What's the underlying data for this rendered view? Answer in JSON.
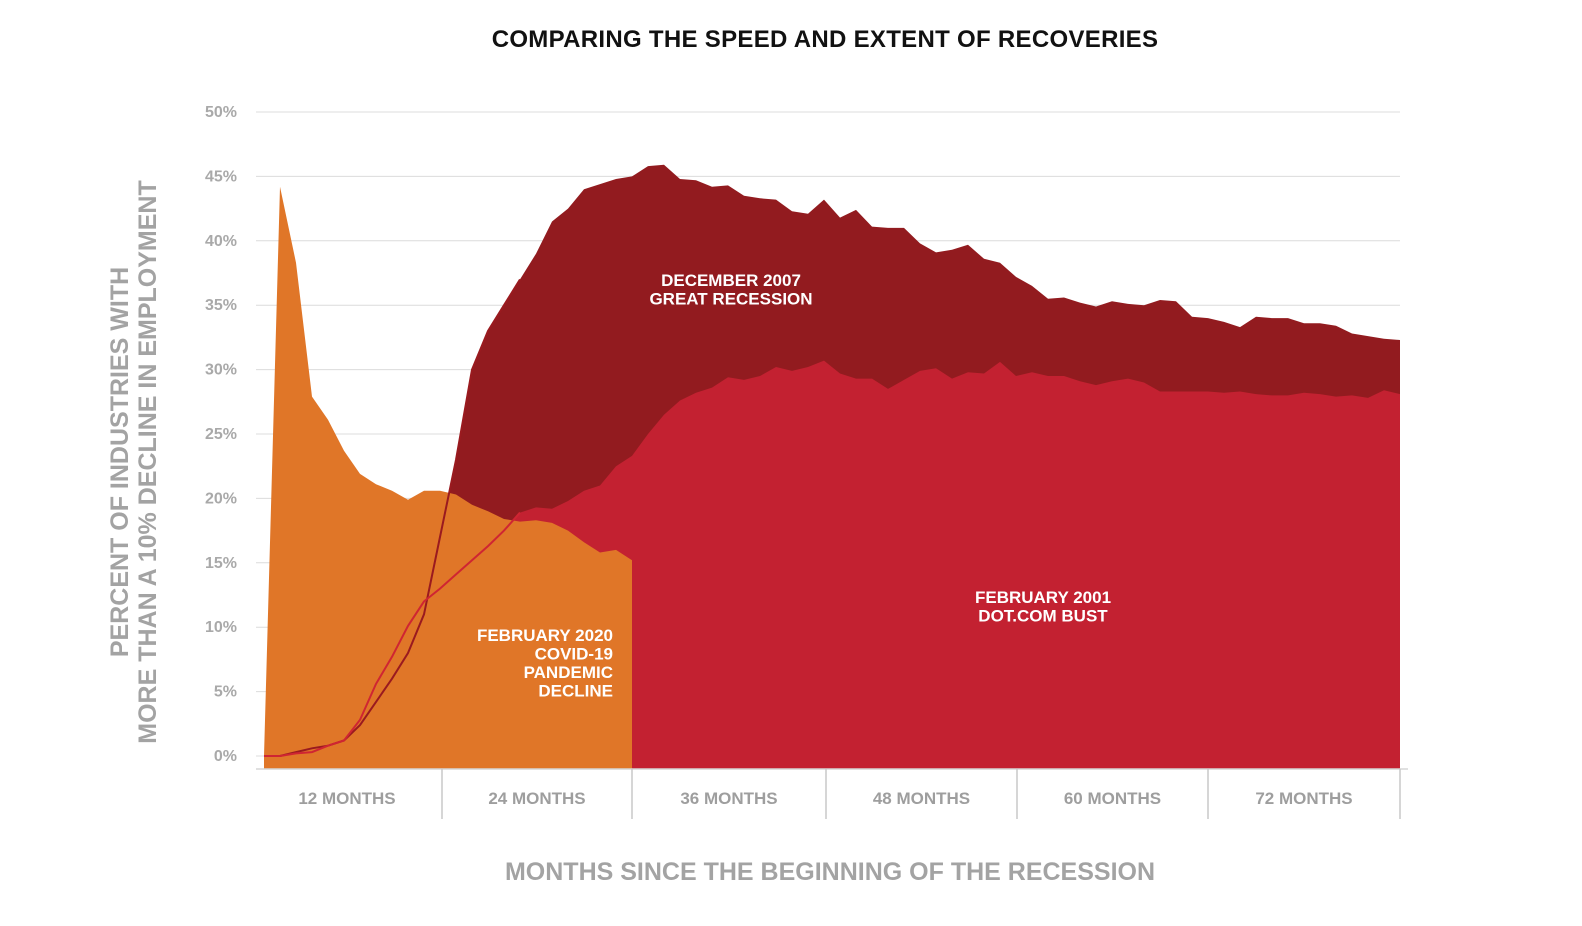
{
  "chart_data": {
    "type": "area",
    "title": "COMPARING THE SPEED AND EXTENT OF RECOVERIES",
    "xlabel": "MONTHS SINCE THE BEGINNING OF THE RECESSION",
    "ylabel_lines": [
      "PERCENT OF INDUSTRIES WITH",
      "MORE THAN A 10% DECLINE IN EMPLOYMENT"
    ],
    "x_ticks": [
      "12 MONTHS",
      "24 MONTHS",
      "36 MONTHS",
      "48 MONTHS",
      "60 MONTHS",
      "72 MONTHS"
    ],
    "y_ticks": [
      "0%",
      "5%",
      "10%",
      "15%",
      "20%",
      "25%",
      "30%",
      "35%",
      "40%",
      "45%",
      "50%"
    ],
    "ylim": [
      0,
      50
    ],
    "xlim": [
      1,
      72
    ],
    "grid": true,
    "series": [
      {
        "name": "DECEMBER 2007\nGREAT RECESSION",
        "label_lines": [
          "DECEMBER 2007",
          "GREAT RECESSION"
        ],
        "color": "#921b1f",
        "x": [
          1,
          2,
          3,
          4,
          5,
          6,
          7,
          8,
          9,
          10,
          11,
          12,
          13,
          14,
          15,
          16,
          17,
          18,
          19,
          20,
          21,
          22,
          23,
          24,
          25,
          26,
          27,
          28,
          29,
          30,
          31,
          32,
          33,
          34,
          35,
          36,
          37,
          38,
          39,
          40,
          41,
          42,
          43,
          44,
          45,
          46,
          47,
          48,
          49,
          50,
          51,
          52,
          53,
          54,
          55,
          56,
          57,
          58,
          59,
          60,
          61,
          62,
          63,
          64,
          65,
          66,
          67,
          68,
          69,
          70,
          71,
          72
        ],
        "values": [
          0,
          0,
          0.3,
          0.6,
          0.8,
          1.2,
          2.4,
          4.2,
          6,
          8,
          11,
          17,
          23,
          30,
          33,
          35,
          37,
          39,
          41.5,
          42.5,
          44,
          44.4,
          44.8,
          45,
          45.8,
          45.9,
          44.8,
          44.7,
          44.2,
          44.3,
          43.5,
          43.3,
          43.2,
          42.3,
          42.1,
          43.2,
          41.8,
          42.4,
          41.1,
          41,
          41,
          39.8,
          39.1,
          39.3,
          39.7,
          38.6,
          38.3,
          37.2,
          36.5,
          35.5,
          35.6,
          35.2,
          34.9,
          35.3,
          35.1,
          35,
          35.4,
          35.3,
          34.1,
          34,
          33.7,
          33.3,
          34.1,
          34,
          34,
          33.6,
          33.6,
          33.4,
          32.8,
          32.6,
          32.4,
          32.3
        ]
      },
      {
        "name": "FEBRUARY 2001\nDOT.COM BUST",
        "label_lines": [
          "FEBRUARY 2001",
          "DOT.COM BUST"
        ],
        "color": "#c32131",
        "x": [
          1,
          2,
          3,
          4,
          5,
          6,
          7,
          8,
          9,
          10,
          11,
          12,
          13,
          14,
          15,
          16,
          17,
          18,
          19,
          20,
          21,
          22,
          23,
          24,
          25,
          26,
          27,
          28,
          29,
          30,
          31,
          32,
          33,
          34,
          35,
          36,
          37,
          38,
          39,
          40,
          41,
          42,
          43,
          44,
          45,
          46,
          47,
          48,
          49,
          50,
          51,
          52,
          53,
          54,
          55,
          56,
          57,
          58,
          59,
          60,
          61,
          62,
          63,
          64,
          65,
          66,
          67,
          68,
          69,
          70,
          71,
          72
        ],
        "values": [
          0,
          0,
          0.2,
          0.3,
          0.8,
          1.2,
          2.8,
          5.6,
          7.7,
          10.1,
          12,
          13,
          14.1,
          15.2,
          16.3,
          17.5,
          18.9,
          19.3,
          19.2,
          19.8,
          20.6,
          21,
          22.5,
          23.3,
          25,
          26.5,
          27.6,
          28.2,
          28.6,
          29.4,
          29.2,
          29.5,
          30.2,
          29.9,
          30.2,
          30.7,
          29.7,
          29.3,
          29.3,
          28.5,
          29.2,
          29.9,
          30.1,
          29.3,
          29.8,
          29.7,
          30.6,
          29.5,
          29.8,
          29.5,
          29.5,
          29.1,
          28.8,
          29.1,
          29.3,
          29,
          28.3,
          28.3,
          28.3,
          28.3,
          28.2,
          28.3,
          28.1,
          28,
          28,
          28.2,
          28.1,
          27.9,
          28,
          27.8,
          28.4,
          28.1
        ]
      },
      {
        "name": "FEBRUARY 2020\nCOVID-19\nPANDEMIC\nDECLINE",
        "label_lines": [
          "FEBRUARY 2020",
          "COVID-19",
          "PANDEMIC",
          "DECLINE"
        ],
        "color": "#e07628",
        "x": [
          1,
          2,
          3,
          4,
          5,
          6,
          7,
          8,
          9,
          10,
          11,
          12,
          13,
          14,
          15,
          16,
          17,
          18,
          19,
          20,
          21,
          22,
          23,
          24
        ],
        "values": [
          0,
          44.2,
          38.3,
          27.9,
          26.1,
          23.7,
          21.9,
          21.1,
          20.6,
          19.9,
          20.6,
          20.6,
          20.3,
          19.5,
          19,
          18.4,
          18.2,
          18.3,
          18.1,
          17.5,
          16.6,
          15.8,
          16,
          15.2
        ]
      }
    ]
  }
}
